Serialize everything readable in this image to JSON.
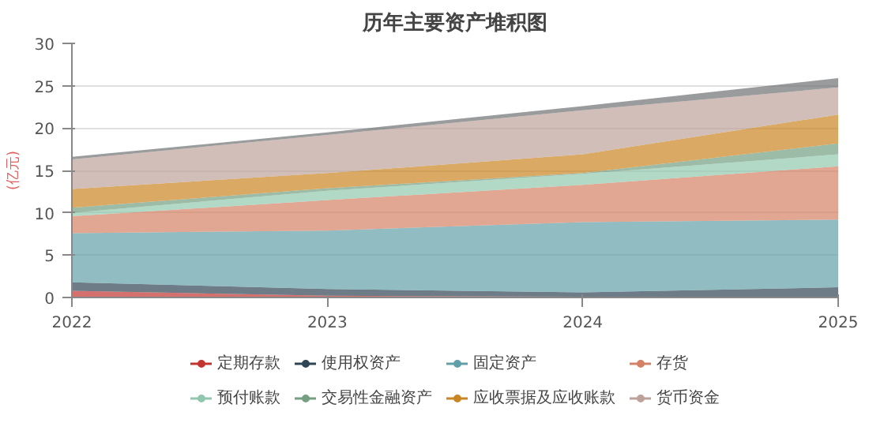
{
  "chart_data": {
    "type": "area",
    "stacked": true,
    "title": "历年主要资产堆积图",
    "ylabel": "(亿元)",
    "x": [
      2022,
      2023,
      2024,
      2025
    ],
    "xlim": [
      2022,
      2025
    ],
    "xticks": [
      2022,
      2023,
      2024,
      2025
    ],
    "ylim": [
      0,
      30
    ],
    "yticks": [
      0,
      5,
      10,
      15,
      20,
      25,
      30
    ],
    "grid": "y",
    "legend": "bottom",
    "series": [
      {
        "name": "定期存款",
        "color": "#c23531",
        "values": [
          0.8,
          0.2,
          0.1,
          0.1
        ]
      },
      {
        "name": "使用权资产",
        "color": "#2f4554",
        "values": [
          1.0,
          0.8,
          0.5,
          1.1
        ]
      },
      {
        "name": "固定资产",
        "color": "#61a0a8",
        "values": [
          5.8,
          6.9,
          8.3,
          8.0
        ]
      },
      {
        "name": "存货",
        "color": "#d48265",
        "values": [
          2.0,
          3.6,
          4.4,
          6.3
        ]
      },
      {
        "name": "预付账款",
        "color": "#91c7ae",
        "values": [
          0.4,
          1.1,
          1.3,
          1.4
        ]
      },
      {
        "name": "交易性金融资产",
        "color": "#749f83",
        "values": [
          0.6,
          0.3,
          0.1,
          1.3
        ]
      },
      {
        "name": "应收票据及应收账款",
        "color": "#ca8622",
        "values": [
          2.2,
          1.8,
          2.2,
          3.4
        ]
      },
      {
        "name": "货币资金",
        "color": "#bda29a",
        "values": [
          3.5,
          4.5,
          5.2,
          3.2
        ]
      },
      {
        "color": "#6e7074",
        "values": [
          0.3,
          0.3,
          0.5,
          1.1
        ]
      }
    ]
  }
}
